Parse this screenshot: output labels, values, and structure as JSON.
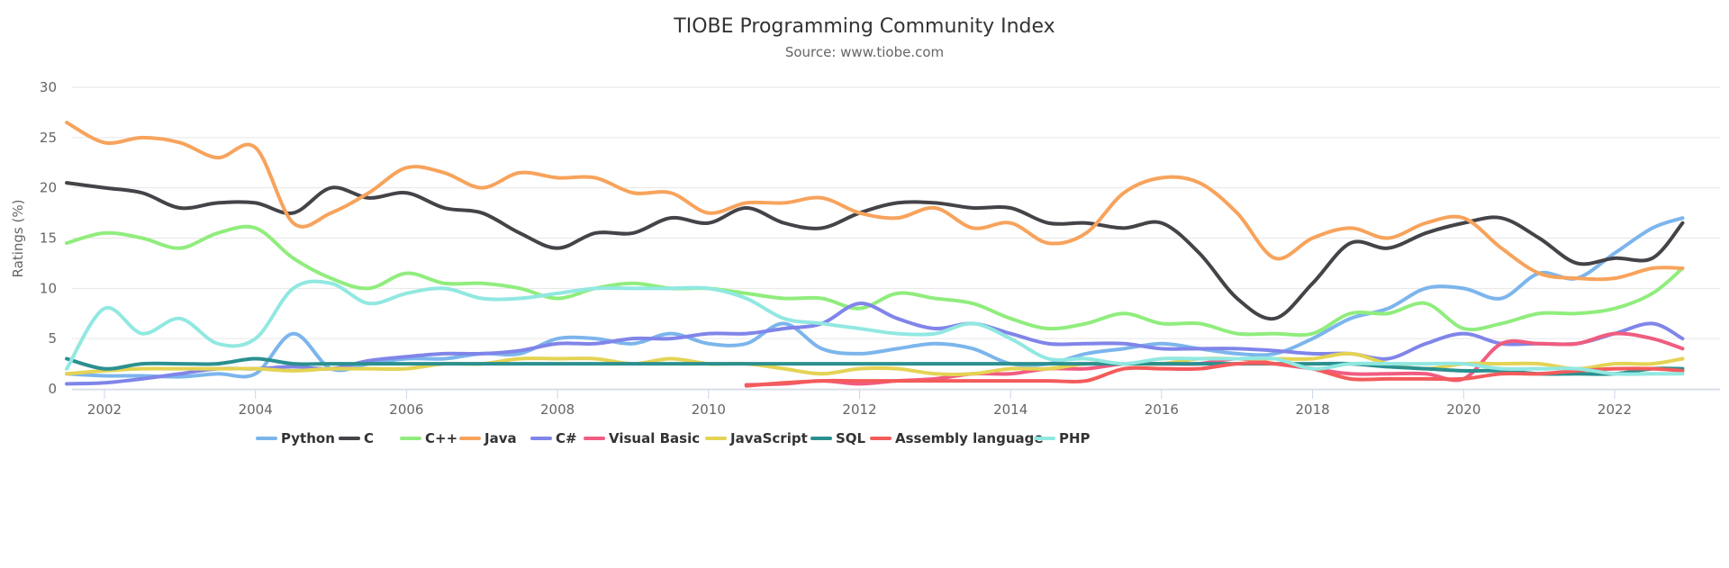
{
  "chart_data": {
    "type": "line",
    "title": "TIOBE Programming Community Index",
    "subtitle": "Source: www.tiobe.com",
    "xlabel": "",
    "ylabel": "Ratings (%)",
    "xlim": [
      2001.5,
      2022.9
    ],
    "ylim": [
      0,
      30
    ],
    "x_ticks": [
      "2002",
      "2004",
      "2006",
      "2008",
      "2010",
      "2012",
      "2014",
      "2016",
      "2018",
      "2020",
      "2022"
    ],
    "y_ticks": [
      "0",
      "5",
      "10",
      "15",
      "20",
      "25",
      "30"
    ],
    "grid": "horizontal",
    "legend_position": "bottom",
    "x": [
      2001.5,
      2002,
      2002.5,
      2003,
      2003.5,
      2004,
      2004.5,
      2005,
      2005.5,
      2006,
      2006.5,
      2007,
      2007.5,
      2008,
      2008.5,
      2009,
      2009.5,
      2010,
      2010.5,
      2011,
      2011.5,
      2012,
      2012.5,
      2013,
      2013.5,
      2014,
      2014.5,
      2015,
      2015.5,
      2016,
      2016.5,
      2017,
      2017.5,
      2018,
      2018.5,
      2019,
      2019.5,
      2020,
      2020.5,
      2021,
      2021.5,
      2022,
      2022.5,
      2022.9
    ],
    "series": [
      {
        "name": "Python",
        "color": "#7cb5ec",
        "values": [
          1.5,
          1.3,
          1.3,
          1.2,
          1.5,
          1.5,
          5.5,
          2,
          2.5,
          3,
          3,
          3.5,
          3.5,
          5,
          5,
          4.5,
          5.5,
          4.5,
          4.5,
          6.5,
          4,
          3.5,
          4,
          4.5,
          4,
          2.5,
          2.5,
          3.5,
          4,
          4.5,
          4,
          3.5,
          3.5,
          5,
          7,
          8,
          10,
          10,
          9,
          11.5,
          11,
          13.5,
          16,
          17
        ]
      },
      {
        "name": "C",
        "color": "#434348",
        "values": [
          20.5,
          20,
          19.5,
          18,
          18.5,
          18.5,
          17.5,
          20,
          19,
          19.5,
          18,
          17.5,
          15.5,
          14,
          15.5,
          15.5,
          17,
          16.5,
          18,
          16.5,
          16,
          17.5,
          18.5,
          18.5,
          18,
          18,
          16.5,
          16.5,
          16,
          16.5,
          13.5,
          9,
          7,
          10.5,
          14.5,
          14,
          15.5,
          16.5,
          17,
          15,
          12.5,
          13,
          13,
          16.5
        ]
      },
      {
        "name": "C++",
        "color": "#90ed7d",
        "values": [
          14.5,
          15.5,
          15,
          14,
          15.5,
          16,
          13,
          11,
          10,
          11.5,
          10.5,
          10.5,
          10,
          9,
          10,
          10.5,
          10,
          10,
          9.5,
          9,
          9,
          8,
          9.5,
          9,
          8.5,
          7,
          6,
          6.5,
          7.5,
          6.5,
          6.5,
          5.5,
          5.5,
          5.5,
          7.5,
          7.5,
          8.5,
          6,
          6.5,
          7.5,
          7.5,
          8,
          9.5,
          12
        ]
      },
      {
        "name": "Java",
        "color": "#f7a35c",
        "values": [
          26.5,
          24.5,
          25,
          24.5,
          23,
          24,
          16.5,
          17.5,
          19.5,
          22,
          21.5,
          20,
          21.5,
          21,
          21,
          19.5,
          19.5,
          17.5,
          18.5,
          18.5,
          19,
          17.5,
          17,
          18,
          16,
          16.5,
          14.5,
          15.5,
          19.5,
          21,
          20.5,
          17.5,
          13,
          15,
          16,
          15,
          16.5,
          17,
          14,
          11.5,
          11,
          11,
          12,
          12
        ]
      },
      {
        "name": "C#",
        "color": "#8085e9",
        "values": [
          0.5,
          0.6,
          1,
          1.5,
          2,
          2,
          2.2,
          2,
          2.8,
          3.2,
          3.5,
          3.5,
          3.8,
          4.5,
          4.5,
          5,
          5,
          5.5,
          5.5,
          6,
          6.5,
          8.5,
          7,
          6,
          6.5,
          5.5,
          4.5,
          4.5,
          4.5,
          4,
          4,
          4,
          3.8,
          3.5,
          3.5,
          3,
          4.5,
          5.5,
          4.5,
          4.5,
          4.5,
          5.5,
          6.5,
          5
        ]
      },
      {
        "name": "Visual Basic",
        "color": "#f15c80",
        "values": [
          null,
          null,
          null,
          null,
          null,
          null,
          null,
          null,
          null,
          null,
          null,
          null,
          null,
          null,
          null,
          null,
          null,
          null,
          0.4,
          0.5,
          0.8,
          0.5,
          0.8,
          1,
          1.5,
          1.5,
          2,
          2,
          2.5,
          2.5,
          2.5,
          3,
          2.5,
          2,
          1.5,
          1.5,
          1.5,
          1,
          4.5,
          4.5,
          4.5,
          5.5,
          5,
          4
        ]
      },
      {
        "name": "JavaScript",
        "color": "#e4d354",
        "values": [
          1.5,
          1.8,
          2,
          2,
          2,
          2,
          1.8,
          2,
          2,
          2,
          2.5,
          2.5,
          3,
          3,
          3,
          2.5,
          3,
          2.5,
          2.5,
          2,
          1.5,
          2,
          2,
          1.5,
          1.5,
          2,
          2,
          2.5,
          2.5,
          2.5,
          3,
          3,
          3,
          3,
          3.5,
          2.5,
          2,
          2.5,
          2.5,
          2.5,
          2,
          2.5,
          2.5,
          3
        ]
      },
      {
        "name": "SQL",
        "color": "#2b908f",
        "values": [
          3,
          2,
          2.5,
          2.5,
          2.5,
          3,
          2.5,
          2.5,
          2.5,
          2.5,
          2.5,
          2.5,
          2.5,
          2.5,
          2.5,
          2.5,
          2.5,
          2.5,
          2.5,
          2.5,
          2.5,
          2.5,
          2.5,
          2.5,
          2.5,
          2.5,
          2.5,
          2.5,
          2.5,
          2.5,
          2.5,
          2.5,
          2.5,
          2.5,
          2.5,
          2.2,
          2,
          1.8,
          1.8,
          1.5,
          1.5,
          1.5,
          2,
          2
        ]
      },
      {
        "name": "Assembly language",
        "color": "#f45b5b",
        "values": [
          null,
          null,
          null,
          null,
          null,
          null,
          null,
          null,
          null,
          null,
          null,
          null,
          null,
          null,
          null,
          null,
          null,
          null,
          0.3,
          0.6,
          0.8,
          0.8,
          0.8,
          0.8,
          0.8,
          0.8,
          0.8,
          0.8,
          2,
          2,
          2,
          2.5,
          2.5,
          2,
          1,
          1,
          1,
          1,
          1.5,
          1.5,
          1.8,
          2,
          2,
          1.8
        ]
      },
      {
        "name": "PHP",
        "color": "#91e8e1",
        "values": [
          2,
          8,
          5.5,
          7,
          4.5,
          5,
          10,
          10.5,
          8.5,
          9.5,
          10,
          9,
          9,
          9.5,
          10,
          10,
          10,
          10,
          9,
          7,
          6.5,
          6,
          5.5,
          5.5,
          6.5,
          5,
          3,
          3,
          2.5,
          3,
          3,
          3,
          3,
          2,
          2.5,
          2.5,
          2.5,
          2.5,
          2,
          2,
          2,
          1.5,
          1.5,
          1.5
        ]
      }
    ]
  }
}
